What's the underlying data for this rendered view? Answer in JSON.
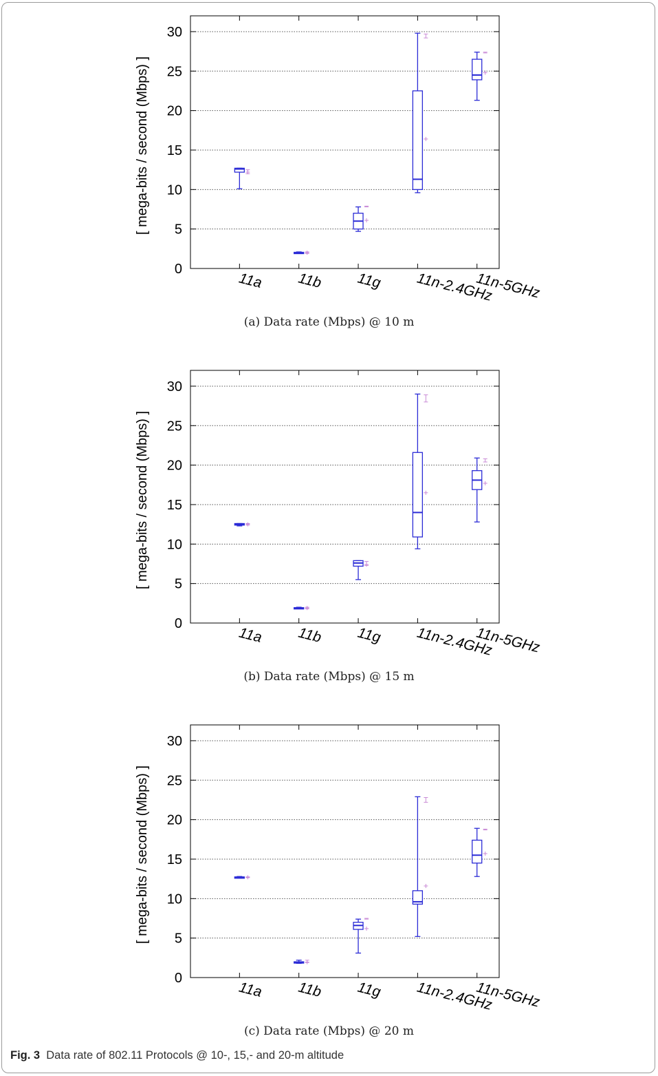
{
  "figure": {
    "caption_label": "Fig. 3",
    "caption_text": "Data rate of 802.11 Protocols @ 10-, 15,- and 20-m altitude"
  },
  "colors": {
    "box": "#2b2bd6",
    "mean": "#c98ad6",
    "grid": "#555555"
  },
  "chart_data": [
    {
      "type": "box",
      "subcaption": "(a) Data rate (Mbps) @ 10 m",
      "ylabel": "[ mega-bits / second (Mbps) ]",
      "ylim": [
        0,
        30
      ],
      "yticks": [
        0,
        5,
        10,
        15,
        20,
        25,
        30
      ],
      "grid": true,
      "categories": [
        "11a",
        "11b",
        "11g",
        "11n-2.4GHz",
        "11n-5GHz"
      ],
      "boxes": [
        {
          "min": 10.1,
          "q1": 12.2,
          "median": 12.6,
          "q3": 12.7,
          "max": 12.7,
          "mean": 12.2,
          "ci": [
            12.0,
            12.5
          ]
        },
        {
          "min": 1.9,
          "q1": 1.95,
          "median": 2.0,
          "q3": 2.05,
          "max": 2.1,
          "mean": 2.0,
          "ci": [
            1.9,
            2.1
          ]
        },
        {
          "min": 4.7,
          "q1": 5.0,
          "median": 6.0,
          "q3": 7.0,
          "max": 7.8,
          "mean": 6.1,
          "ci": [
            7.8,
            7.9
          ]
        },
        {
          "min": 9.6,
          "q1": 10.0,
          "median": 11.3,
          "q3": 22.5,
          "max": 29.8,
          "mean": 16.4,
          "ci": [
            29.2,
            29.7
          ]
        },
        {
          "min": 21.3,
          "q1": 23.9,
          "median": 24.5,
          "q3": 26.5,
          "max": 27.4,
          "mean": 24.8,
          "ci": [
            27.3,
            27.4
          ]
        }
      ]
    },
    {
      "type": "box",
      "subcaption": "(b) Data rate (Mbps) @ 15 m",
      "ylabel": "[ mega-bits / second (Mbps) ]",
      "ylim": [
        0,
        30
      ],
      "yticks": [
        0,
        5,
        10,
        15,
        20,
        25,
        30
      ],
      "grid": true,
      "categories": [
        "11a",
        "11b",
        "11g",
        "11n-2.4GHz",
        "11n-5GHz"
      ],
      "boxes": [
        {
          "min": 12.3,
          "q1": 12.4,
          "median": 12.5,
          "q3": 12.6,
          "max": 12.6,
          "mean": 12.5,
          "ci": [
            12.4,
            12.6
          ]
        },
        {
          "min": 1.8,
          "q1": 1.85,
          "median": 1.9,
          "q3": 1.95,
          "max": 2.0,
          "mean": 1.9,
          "ci": [
            1.8,
            2.0
          ]
        },
        {
          "min": 5.5,
          "q1": 7.2,
          "median": 7.6,
          "q3": 7.9,
          "max": 7.9,
          "mean": 7.4,
          "ci": [
            7.3,
            7.8
          ]
        },
        {
          "min": 9.4,
          "q1": 10.9,
          "median": 14.0,
          "q3": 21.6,
          "max": 29.0,
          "mean": 16.5,
          "ci": [
            28.0,
            28.9
          ]
        },
        {
          "min": 12.8,
          "q1": 16.9,
          "median": 18.1,
          "q3": 19.3,
          "max": 20.9,
          "mean": 17.7,
          "ci": [
            20.4,
            20.8
          ]
        }
      ]
    },
    {
      "type": "box",
      "subcaption": "(c) Data rate (Mbps) @ 20 m",
      "ylabel": "[ mega-bits / second (Mbps) ]",
      "ylim": [
        0,
        30
      ],
      "yticks": [
        0,
        5,
        10,
        15,
        20,
        25,
        30
      ],
      "grid": true,
      "categories": [
        "11a",
        "11b",
        "11g",
        "11n-2.4GHz",
        "11n-5GHz"
      ],
      "boxes": [
        {
          "min": 12.6,
          "q1": 12.65,
          "median": 12.7,
          "q3": 12.75,
          "max": 12.8,
          "mean": 12.7,
          "ci": [
            12.65,
            12.75
          ]
        },
        {
          "min": 1.8,
          "q1": 1.85,
          "median": 1.9,
          "q3": 2.0,
          "max": 2.2,
          "mean": 1.95,
          "ci": [
            1.9,
            2.2
          ]
        },
        {
          "min": 3.1,
          "q1": 6.1,
          "median": 6.6,
          "q3": 7.0,
          "max": 7.4,
          "mean": 6.2,
          "ci": [
            7.4,
            7.5
          ]
        },
        {
          "min": 5.2,
          "q1": 9.3,
          "median": 9.6,
          "q3": 11.0,
          "max": 22.9,
          "mean": 11.6,
          "ci": [
            22.2,
            22.8
          ]
        },
        {
          "min": 12.8,
          "q1": 14.5,
          "median": 15.5,
          "q3": 17.4,
          "max": 18.9,
          "mean": 15.7,
          "ci": [
            18.7,
            18.8
          ]
        }
      ]
    }
  ]
}
